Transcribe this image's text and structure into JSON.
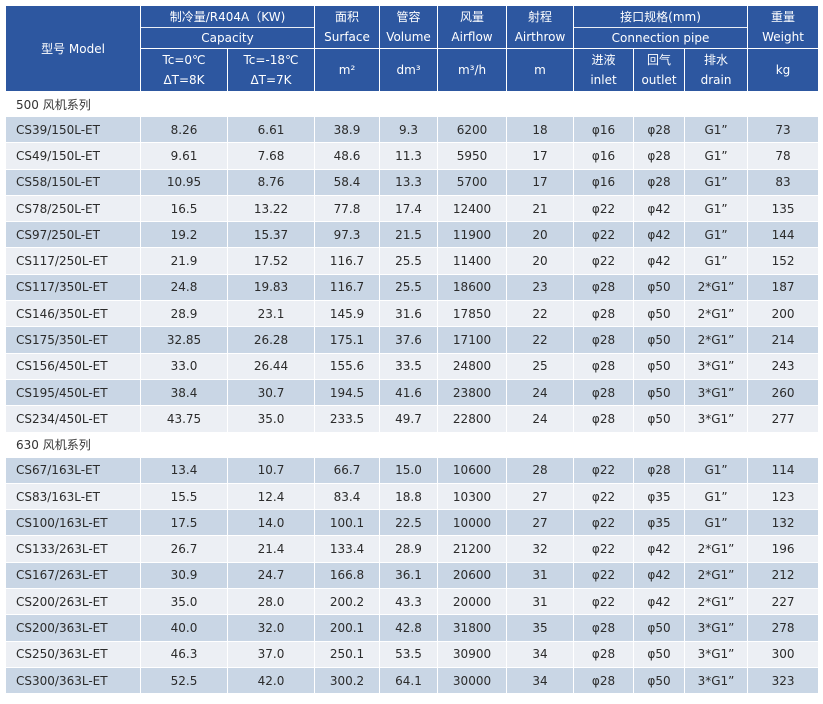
{
  "header": {
    "model": "型号 Model",
    "capacity_zh": "制冷量/R404A（KW)",
    "capacity_en": "Capacity",
    "tc0_a": "Tc=0℃",
    "tc0_b": "ΔT=8K",
    "tc18_a": "Tc=-18℃",
    "tc18_b": "ΔT=7K",
    "surface_zh": "面积",
    "surface_en": "Surface",
    "surface_unit": "m²",
    "volume_zh": "管容",
    "volume_en": "Volume",
    "volume_unit": "dm³",
    "airflow_zh": "风量",
    "airflow_en": "Airflow",
    "airflow_unit": "m³/h",
    "airthrow_zh": "射程",
    "airthrow_en": "Airthrow",
    "airthrow_unit": "m",
    "conn_zh": "接口规格(mm)",
    "conn_en": "Connection pipe",
    "inlet_zh": "进液",
    "inlet_en": "inlet",
    "outlet_zh": "回气",
    "outlet_en": "outlet",
    "drain_zh": "排水",
    "drain_en": "drain",
    "weight_zh": "重量",
    "weight_en": "Weight",
    "weight_unit": "kg"
  },
  "groups": [
    {
      "title": "500 风机系列",
      "rows": [
        [
          "CS39/150L-ET",
          "8.26",
          "6.61",
          "38.9",
          "9.3",
          "6200",
          "18",
          "φ16",
          "φ28",
          "G1”",
          "73"
        ],
        [
          "CS49/150L-ET",
          "9.61",
          "7.68",
          "48.6",
          "11.3",
          "5950",
          "17",
          "φ16",
          "φ28",
          "G1”",
          "78"
        ],
        [
          "CS58/150L-ET",
          "10.95",
          "8.76",
          "58.4",
          "13.3",
          "5700",
          "17",
          "φ16",
          "φ28",
          "G1”",
          "83"
        ],
        [
          "CS78/250L-ET",
          "16.5",
          "13.22",
          "77.8",
          "17.4",
          "12400",
          "21",
          "φ22",
          "φ42",
          "G1”",
          "135"
        ],
        [
          "CS97/250L-ET",
          "19.2",
          "15.37",
          "97.3",
          "21.5",
          "11900",
          "20",
          "φ22",
          "φ42",
          "G1”",
          "144"
        ],
        [
          "CS117/250L-ET",
          "21.9",
          "17.52",
          "116.7",
          "25.5",
          "11400",
          "20",
          "φ22",
          "φ42",
          "G1”",
          "152"
        ],
        [
          "CS117/350L-ET",
          "24.8",
          "19.83",
          "116.7",
          "25.5",
          "18600",
          "23",
          "φ28",
          "φ50",
          "2*G1”",
          "187"
        ],
        [
          "CS146/350L-ET",
          "28.9",
          "23.1",
          "145.9",
          "31.6",
          "17850",
          "22",
          "φ28",
          "φ50",
          "2*G1”",
          "200"
        ],
        [
          "CS175/350L-ET",
          "32.85",
          "26.28",
          "175.1",
          "37.6",
          "17100",
          "22",
          "φ28",
          "φ50",
          "2*G1”",
          "214"
        ],
        [
          "CS156/450L-ET",
          "33.0",
          "26.44",
          "155.6",
          "33.5",
          "24800",
          "25",
          "φ28",
          "φ50",
          "3*G1”",
          "243"
        ],
        [
          "CS195/450L-ET",
          "38.4",
          "30.7",
          "194.5",
          "41.6",
          "23800",
          "24",
          "φ28",
          "φ50",
          "3*G1”",
          "260"
        ],
        [
          "CS234/450L-ET",
          "43.75",
          "35.0",
          "233.5",
          "49.7",
          "22800",
          "24",
          "φ28",
          "φ50",
          "3*G1”",
          "277"
        ]
      ]
    },
    {
      "title": "630 风机系列",
      "rows": [
        [
          "CS67/163L-ET",
          "13.4",
          "10.7",
          "66.7",
          "15.0",
          "10600",
          "28",
          "φ22",
          "φ28",
          "G1”",
          "114"
        ],
        [
          "CS83/163L-ET",
          "15.5",
          "12.4",
          "83.4",
          "18.8",
          "10300",
          "27",
          "φ22",
          "φ35",
          "G1”",
          "123"
        ],
        [
          "CS100/163L-ET",
          "17.5",
          "14.0",
          "100.1",
          "22.5",
          "10000",
          "27",
          "φ22",
          "φ35",
          "G1”",
          "132"
        ],
        [
          "CS133/263L-ET",
          "26.7",
          "21.4",
          "133.4",
          "28.9",
          "21200",
          "32",
          "φ22",
          "φ42",
          "2*G1”",
          "196"
        ],
        [
          "CS167/263L-ET",
          "30.9",
          "24.7",
          "166.8",
          "36.1",
          "20600",
          "31",
          "φ22",
          "φ42",
          "2*G1”",
          "212"
        ],
        [
          "CS200/263L-ET",
          "35.0",
          "28.0",
          "200.2",
          "43.3",
          "20000",
          "31",
          "φ22",
          "φ42",
          "2*G1”",
          "227"
        ],
        [
          "CS200/363L-ET",
          "40.0",
          "32.0",
          "200.1",
          "42.8",
          "31800",
          "35",
          "φ28",
          "φ50",
          "3*G1”",
          "278"
        ],
        [
          "CS250/363L-ET",
          "46.3",
          "37.0",
          "250.1",
          "53.5",
          "30900",
          "34",
          "φ28",
          "φ50",
          "3*G1”",
          "300"
        ],
        [
          "CS300/363L-ET",
          "52.5",
          "42.0",
          "300.2",
          "64.1",
          "30000",
          "34",
          "φ28",
          "φ50",
          "3*G1”",
          "323"
        ]
      ]
    }
  ]
}
